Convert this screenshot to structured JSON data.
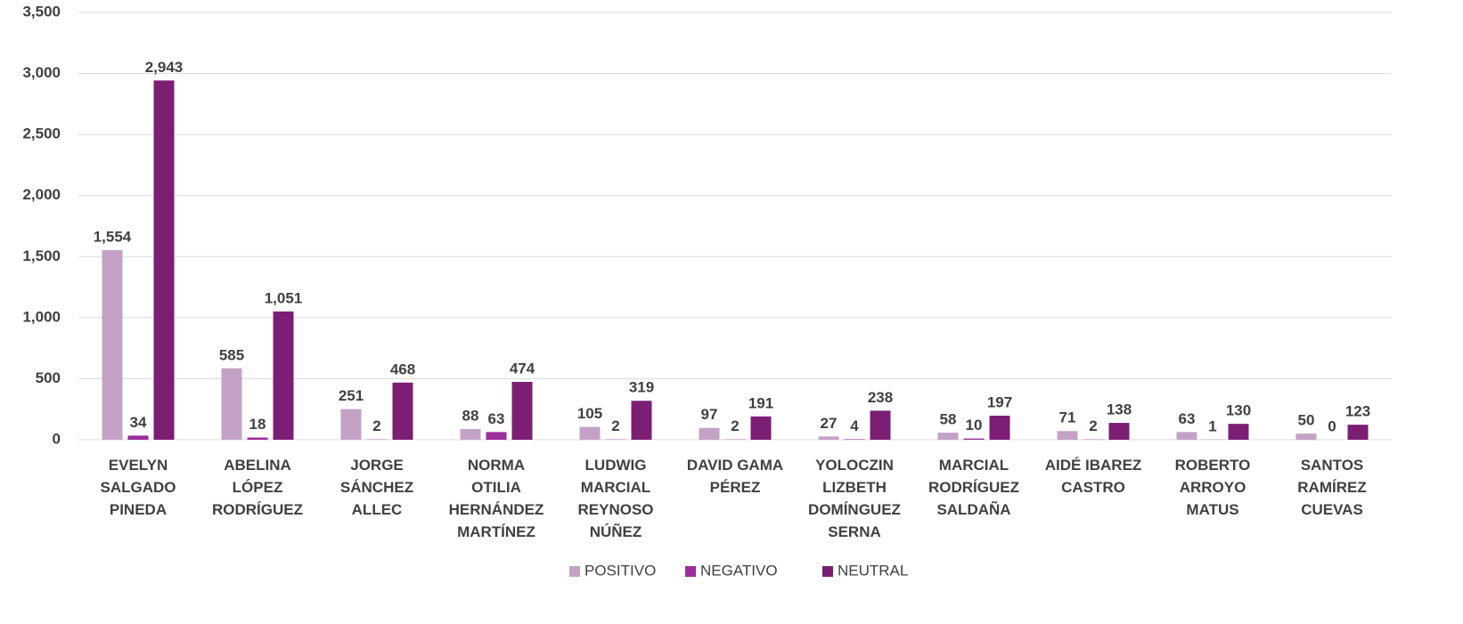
{
  "chart_data": {
    "type": "bar",
    "categories": [
      "EVELYN SALGADO PINEDA",
      "ABELINA LÓPEZ RODRÍGUEZ",
      "JORGE SÁNCHEZ ALLEC",
      "NORMA OTILIA HERNÁNDEZ MARTÍNEZ",
      "LUDWIG MARCIAL REYNOSO NÚÑEZ",
      "DAVID GAMA PÉREZ",
      "YOLOCZIN LIZBETH DOMÍNGUEZ SERNA",
      "MARCIAL RODRÍGUEZ SALDAÑA",
      "AIDÉ IBAREZ CASTRO",
      "ROBERTO ARROYO MATUS",
      "SANTOS RAMÍREZ CUEVAS"
    ],
    "series": [
      {
        "name": "POSITIVO",
        "color": "#c4a2c6",
        "values": [
          1554,
          585,
          251,
          88,
          105,
          97,
          27,
          58,
          71,
          63,
          50
        ],
        "value_labels": [
          "1,554",
          "585",
          "251",
          "88",
          "105",
          "97",
          "27",
          "58",
          "71",
          "63",
          "50"
        ]
      },
      {
        "name": "NEGATIVO",
        "color": "#9b2d9b",
        "values": [
          34,
          18,
          2,
          63,
          2,
          2,
          4,
          10,
          2,
          1,
          0
        ],
        "value_labels": [
          "34",
          "18",
          "2",
          "63",
          "2",
          "2",
          "4",
          "10",
          "2",
          "1",
          "0"
        ]
      },
      {
        "name": "NEUTRAL",
        "color": "#7b1e74",
        "values": [
          2943,
          1051,
          468,
          474,
          319,
          191,
          238,
          197,
          138,
          130,
          123
        ],
        "value_labels": [
          "2,943",
          "1,051",
          "468",
          "474",
          "319",
          "191",
          "238",
          "197",
          "138",
          "130",
          "123"
        ]
      }
    ],
    "ylim": [
      0,
      3500
    ],
    "yticks": [
      0,
      500,
      {
        "value": 1000,
        "label": "1,000"
      },
      {
        "value": 1500,
        "label": "1,500"
      },
      {
        "value": 2000,
        "label": "2,000"
      },
      {
        "value": 2500,
        "label": "2,500"
      },
      {
        "value": 3000,
        "label": "3,000"
      },
      {
        "value": 3500,
        "label": "3,500"
      }
    ],
    "grid": true,
    "legend": "bottom"
  }
}
